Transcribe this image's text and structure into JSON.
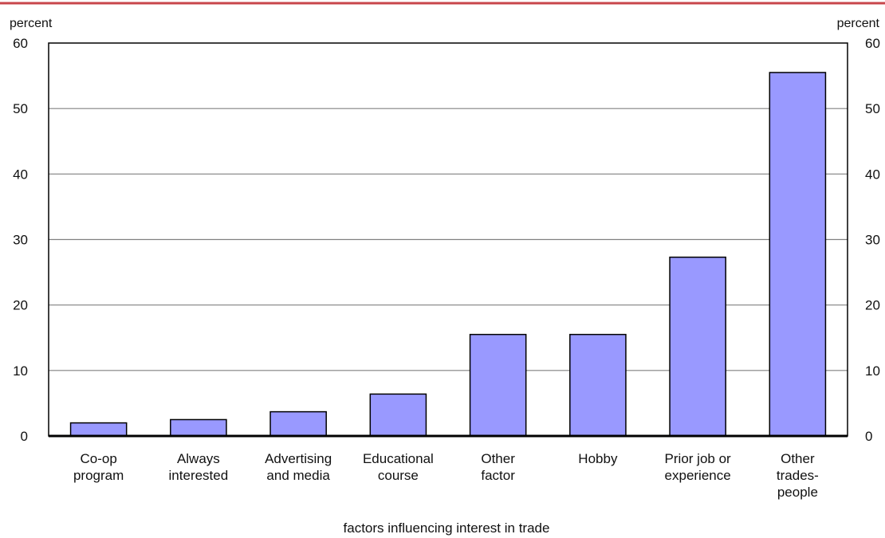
{
  "chart_data": {
    "type": "bar",
    "title": "",
    "xlabel": "factors influencing interest in trade",
    "ylabel_left": "percent",
    "ylabel_right": "percent",
    "ylim": [
      0,
      60
    ],
    "yticks": [
      "0",
      "10",
      "20",
      "30",
      "40",
      "50",
      "60"
    ],
    "categories": [
      [
        "Co-op",
        "program"
      ],
      [
        "Always",
        "interested"
      ],
      [
        "Advertising",
        "and media"
      ],
      [
        "Educational",
        "course"
      ],
      [
        "Other",
        "factor"
      ],
      [
        "Hobby"
      ],
      [
        "Prior job or",
        "experience"
      ],
      [
        "Other",
        "trades-",
        "people"
      ]
    ],
    "values": [
      2,
      2.5,
      3.7,
      6.4,
      15.5,
      15.5,
      27.3,
      55.5
    ],
    "grid": true,
    "colors": {
      "bar_fill": "#9999ff",
      "bar_stroke": "#000000",
      "top_rule": "#c8464b",
      "grid": "#808080"
    }
  }
}
